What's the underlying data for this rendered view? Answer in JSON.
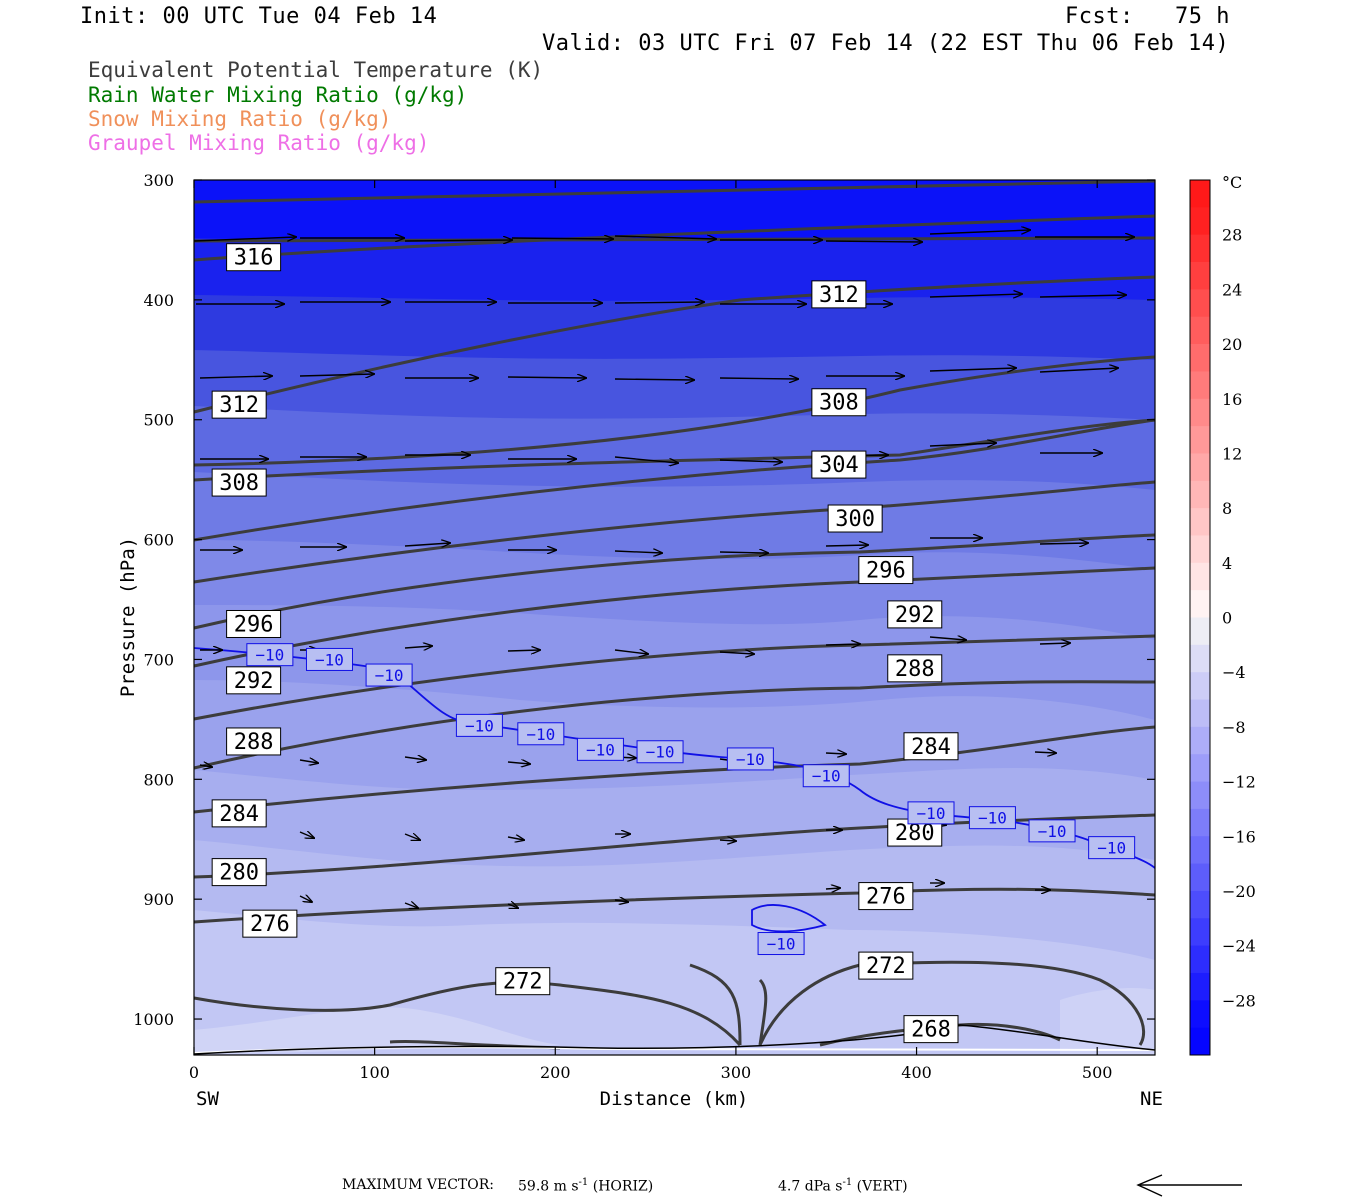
{
  "header": {
    "init": "Init: 00 UTC Tue 04 Feb 14",
    "fcst": "Fcst:   75 h",
    "valid": "Valid: 03 UTC Fri 07 Feb 14 (22 EST Thu 06 Feb 14)"
  },
  "legend": [
    {
      "label": "Equivalent Potential Temperature (K)",
      "color": "#3c3c3c"
    },
    {
      "label": "Rain Water Mixing Ratio (g/kg)",
      "color": "#007a00"
    },
    {
      "label": "Snow Mixing Ratio (g/kg)",
      "color": "#f0905a"
    },
    {
      "label": "Graupel Mixing Ratio (g/kg)",
      "color": "#ee6fe6"
    }
  ],
  "footer": {
    "max_vector_label": "MAXIMUM VECTOR:",
    "horiz": "59.8 m s",
    "horiz_unit": "(HORIZ)",
    "vert": "4.7 dPa s",
    "vert_unit": "(VERT)",
    "exp": "-1"
  },
  "chart_data": {
    "type": "cross-section contour",
    "xlabel": "Distance (km)",
    "ylabel": "Pressure (hPa)",
    "x_ticks": [
      0,
      100,
      200,
      300,
      400,
      500
    ],
    "y_ticks": [
      300,
      400,
      500,
      600,
      700,
      800,
      900,
      1000
    ],
    "xlim": [
      0,
      532
    ],
    "ylim": [
      300,
      1030
    ],
    "x_end_labels": {
      "left": "SW",
      "right": "NE"
    },
    "colorbar": {
      "unit": "°C",
      "labels": [
        28,
        24,
        20,
        16,
        12,
        8,
        4,
        0,
        -4,
        -8,
        -12,
        -16,
        -20,
        -24,
        -28
      ]
    },
    "theta_e_contour_labels": [
      {
        "value": "316",
        "x": 33,
        "p": 364
      },
      {
        "value": "312",
        "x": 357,
        "p": 395
      },
      {
        "value": "312",
        "x": 25,
        "p": 487
      },
      {
        "value": "308",
        "x": 357,
        "p": 485
      },
      {
        "value": "308",
        "x": 25,
        "p": 552
      },
      {
        "value": "304",
        "x": 357,
        "p": 537
      },
      {
        "value": "300",
        "x": 366,
        "p": 582
      },
      {
        "value": "296",
        "x": 383,
        "p": 625
      },
      {
        "value": "296",
        "x": 33,
        "p": 670
      },
      {
        "value": "292",
        "x": 399,
        "p": 662
      },
      {
        "value": "292",
        "x": 33,
        "p": 717
      },
      {
        "value": "288",
        "x": 399,
        "p": 707
      },
      {
        "value": "288",
        "x": 33,
        "p": 768
      },
      {
        "value": "284",
        "x": 408,
        "p": 772
      },
      {
        "value": "284",
        "x": 25,
        "p": 828
      },
      {
        "value": "280",
        "x": 399,
        "p": 844
      },
      {
        "value": "280",
        "x": 25,
        "p": 877
      },
      {
        "value": "276",
        "x": 383,
        "p": 897
      },
      {
        "value": "276",
        "x": 42,
        "p": 920
      },
      {
        "value": "272",
        "x": 383,
        "p": 955
      },
      {
        "value": "272",
        "x": 182,
        "p": 968
      },
      {
        "value": "268",
        "x": 408,
        "p": 1008
      }
    ],
    "temperature_contour_labels": [
      {
        "value": "−10",
        "x": 42,
        "p": 696
      },
      {
        "value": "−10",
        "x": 75,
        "p": 700
      },
      {
        "value": "−10",
        "x": 108,
        "p": 713
      },
      {
        "value": "−10",
        "x": 158,
        "p": 755
      },
      {
        "value": "−10",
        "x": 192,
        "p": 762
      },
      {
        "value": "−10",
        "x": 225,
        "p": 775
      },
      {
        "value": "−10",
        "x": 258,
        "p": 777
      },
      {
        "value": "−10",
        "x": 308,
        "p": 783
      },
      {
        "value": "−10",
        "x": 350,
        "p": 797
      },
      {
        "value": "−10",
        "x": 408,
        "p": 828
      },
      {
        "value": "−10",
        "x": 442,
        "p": 832
      },
      {
        "value": "−10",
        "x": 475,
        "p": 843
      },
      {
        "value": "−10",
        "x": 508,
        "p": 857
      },
      {
        "value": "−10",
        "x": 325,
        "p": 937
      }
    ]
  }
}
